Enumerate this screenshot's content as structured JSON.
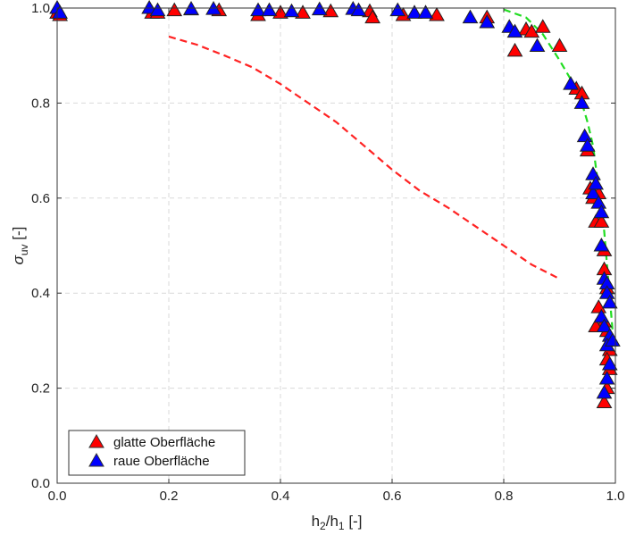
{
  "chart_data": {
    "type": "scatter",
    "title": "",
    "xlabel": {
      "main": "h",
      "sub1": "2",
      "mid": "/h",
      "sub2": "1",
      "unit": " [-]"
    },
    "ylabel": {
      "main": "σ",
      "sub": "uv",
      "unit": " [-]"
    },
    "xlim": [
      0,
      1
    ],
    "ylim": [
      0,
      1
    ],
    "xticks": [
      0,
      0.2,
      0.4,
      0.6,
      0.8,
      1
    ],
    "yticks": [
      0,
      0.2,
      0.4,
      0.6,
      0.8,
      1
    ],
    "xtick_labels": [
      "0.0",
      "0.2",
      "0.4",
      "0.6",
      "0.8",
      "1.0"
    ],
    "ytick_labels": [
      "0.0",
      "0.2",
      "0.4",
      "0.6",
      "0.8",
      "1.0"
    ],
    "grid": true,
    "legend_position": "bottom-left",
    "series": [
      {
        "name": "glatte Oberfläche",
        "color": "#ff0000",
        "marker": "triangle",
        "points": [
          [
            0.0,
            0.99
          ],
          [
            0.005,
            0.985
          ],
          [
            0.17,
            0.99
          ],
          [
            0.18,
            0.99
          ],
          [
            0.21,
            0.995
          ],
          [
            0.24,
            0.997
          ],
          [
            0.29,
            0.995
          ],
          [
            0.36,
            0.985
          ],
          [
            0.4,
            0.99
          ],
          [
            0.44,
            0.99
          ],
          [
            0.49,
            0.993
          ],
          [
            0.56,
            0.993
          ],
          [
            0.565,
            0.98
          ],
          [
            0.62,
            0.985
          ],
          [
            0.68,
            0.985
          ],
          [
            0.77,
            0.98
          ],
          [
            0.82,
            0.91
          ],
          [
            0.84,
            0.955
          ],
          [
            0.85,
            0.95
          ],
          [
            0.87,
            0.96
          ],
          [
            0.9,
            0.92
          ],
          [
            0.93,
            0.83
          ],
          [
            0.94,
            0.82
          ],
          [
            0.95,
            0.7
          ],
          [
            0.955,
            0.62
          ],
          [
            0.96,
            0.6
          ],
          [
            0.965,
            0.55
          ],
          [
            0.97,
            0.61
          ],
          [
            0.975,
            0.55
          ],
          [
            0.98,
            0.49
          ],
          [
            0.98,
            0.45
          ],
          [
            0.985,
            0.41
          ],
          [
            0.97,
            0.37
          ],
          [
            0.98,
            0.34
          ],
          [
            0.985,
            0.32
          ],
          [
            0.99,
            0.3
          ],
          [
            0.965,
            0.33
          ],
          [
            0.99,
            0.28
          ],
          [
            0.985,
            0.26
          ],
          [
            0.99,
            0.24
          ],
          [
            0.985,
            0.2
          ],
          [
            0.98,
            0.17
          ]
        ]
      },
      {
        "name": "raue Oberfläche",
        "color": "#0000ff",
        "marker": "triangle",
        "points": [
          [
            0.0,
            1.0
          ],
          [
            0.005,
            0.99
          ],
          [
            0.165,
            1.0
          ],
          [
            0.18,
            0.995
          ],
          [
            0.24,
            0.998
          ],
          [
            0.28,
            0.998
          ],
          [
            0.36,
            0.995
          ],
          [
            0.38,
            0.995
          ],
          [
            0.42,
            0.993
          ],
          [
            0.47,
            0.997
          ],
          [
            0.53,
            0.998
          ],
          [
            0.54,
            0.995
          ],
          [
            0.61,
            0.995
          ],
          [
            0.64,
            0.99
          ],
          [
            0.66,
            0.99
          ],
          [
            0.74,
            0.98
          ],
          [
            0.77,
            0.97
          ],
          [
            0.81,
            0.96
          ],
          [
            0.82,
            0.95
          ],
          [
            0.86,
            0.92
          ],
          [
            0.92,
            0.84
          ],
          [
            0.94,
            0.8
          ],
          [
            0.945,
            0.73
          ],
          [
            0.95,
            0.71
          ],
          [
            0.96,
            0.65
          ],
          [
            0.96,
            0.61
          ],
          [
            0.965,
            0.63
          ],
          [
            0.97,
            0.59
          ],
          [
            0.975,
            0.57
          ],
          [
            0.975,
            0.5
          ],
          [
            0.98,
            0.43
          ],
          [
            0.985,
            0.42
          ],
          [
            0.985,
            0.4
          ],
          [
            0.99,
            0.38
          ],
          [
            0.975,
            0.35
          ],
          [
            0.98,
            0.33
          ],
          [
            0.99,
            0.31
          ],
          [
            0.985,
            0.29
          ],
          [
            0.99,
            0.25
          ],
          [
            0.985,
            0.22
          ],
          [
            0.98,
            0.19
          ],
          [
            0.995,
            0.3
          ]
        ]
      }
    ],
    "curves": [
      {
        "name": "red dashed curve",
        "color": "#ff2222",
        "style": "dashed",
        "points": [
          [
            0.2,
            0.94
          ],
          [
            0.25,
            0.923
          ],
          [
            0.3,
            0.9
          ],
          [
            0.35,
            0.875
          ],
          [
            0.4,
            0.84
          ],
          [
            0.45,
            0.8
          ],
          [
            0.5,
            0.76
          ],
          [
            0.55,
            0.71
          ],
          [
            0.6,
            0.66
          ],
          [
            0.65,
            0.615
          ],
          [
            0.7,
            0.58
          ],
          [
            0.75,
            0.54
          ],
          [
            0.8,
            0.5
          ],
          [
            0.85,
            0.46
          ],
          [
            0.9,
            0.43
          ]
        ]
      },
      {
        "name": "green dashed curve",
        "color": "#22dd22",
        "style": "dashed",
        "points": [
          [
            0.8,
            0.997
          ],
          [
            0.84,
            0.98
          ],
          [
            0.87,
            0.945
          ],
          [
            0.9,
            0.89
          ],
          [
            0.92,
            0.85
          ],
          [
            0.94,
            0.8
          ],
          [
            0.95,
            0.76
          ],
          [
            0.96,
            0.71
          ],
          [
            0.97,
            0.62
          ],
          [
            0.98,
            0.53
          ],
          [
            0.985,
            0.46
          ],
          [
            0.99,
            0.39
          ],
          [
            0.995,
            0.32
          ]
        ]
      }
    ]
  }
}
